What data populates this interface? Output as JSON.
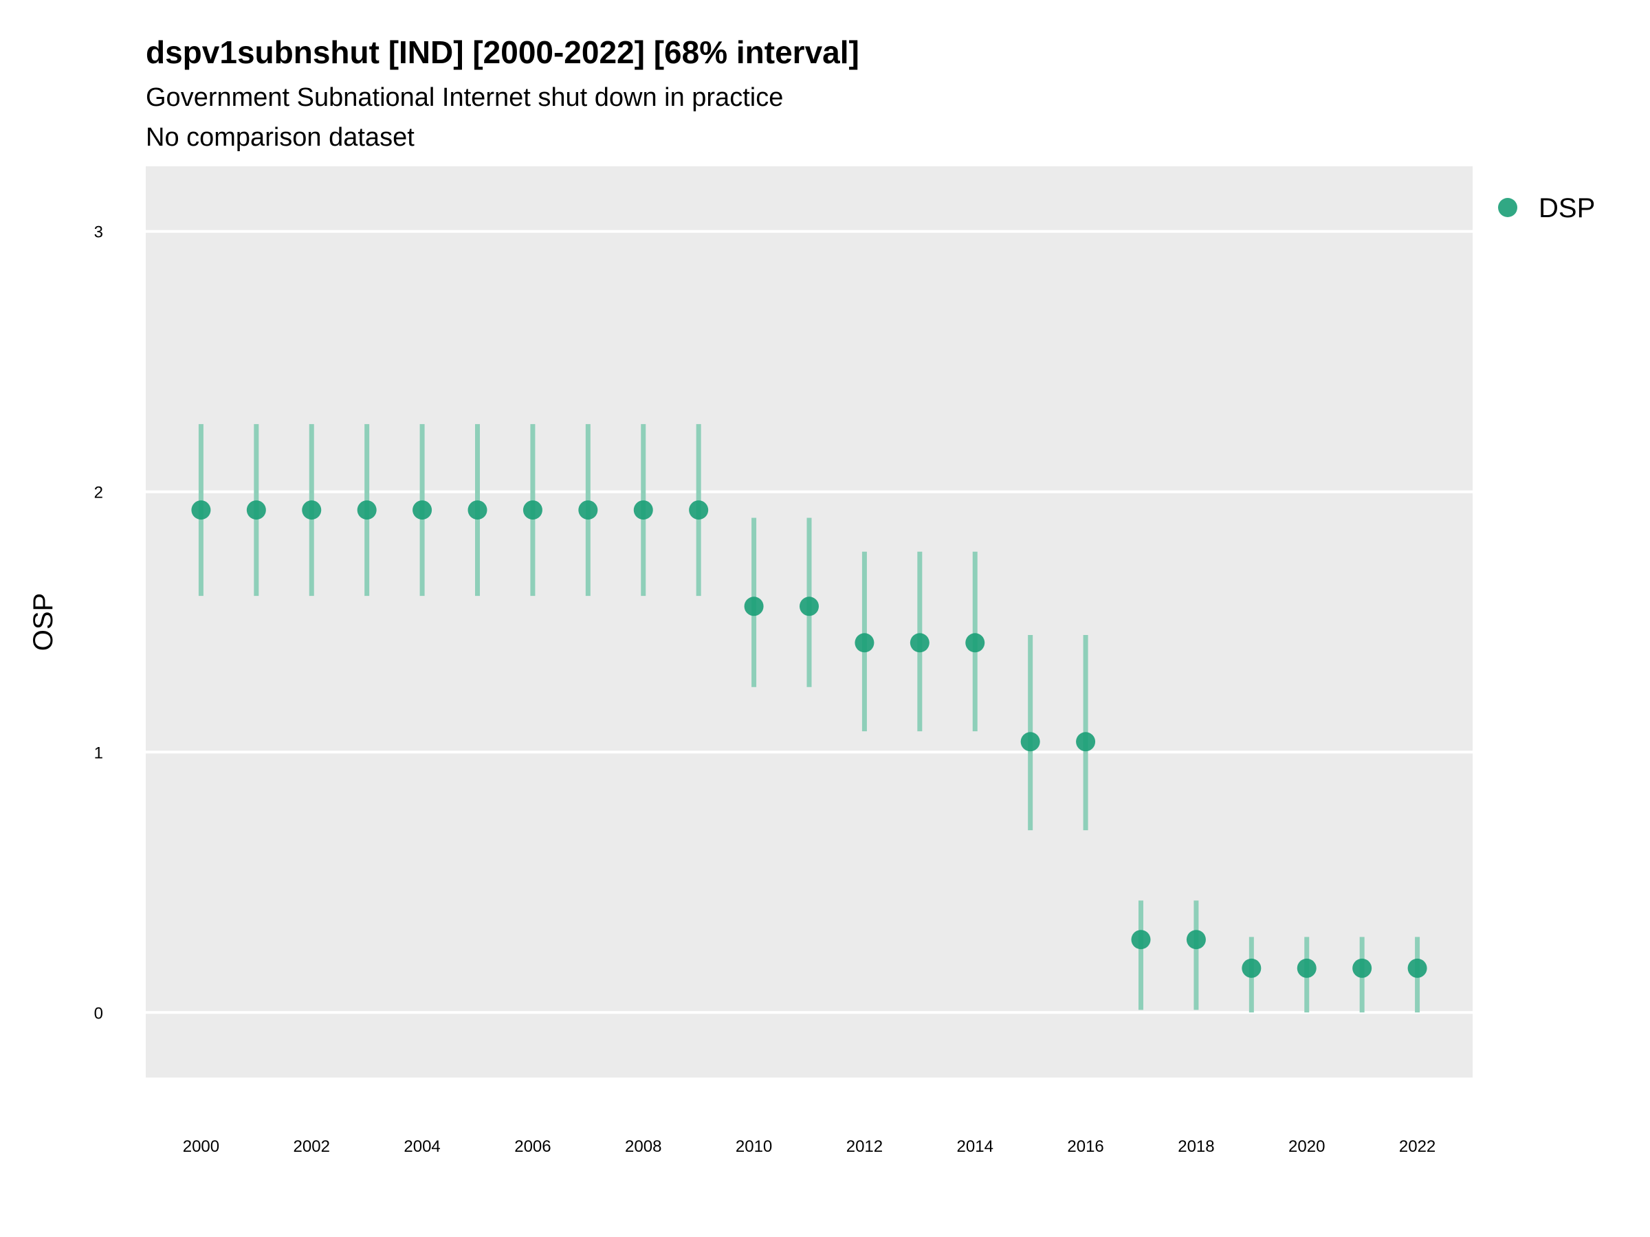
{
  "chart_data": {
    "type": "scatter",
    "title": "dspv1subnshut [IND] [2000-2022] [68% interval]",
    "subtitle": "Government Subnational Internet shut down in practice",
    "caption": "No comparison dataset",
    "xlabel": "",
    "ylabel": "OSP",
    "xlim": [
      1999,
      2023
    ],
    "ylim": [
      -0.25,
      3.25
    ],
    "x_ticks": [
      2000,
      2002,
      2004,
      2006,
      2008,
      2010,
      2012,
      2014,
      2016,
      2018,
      2020,
      2022
    ],
    "y_ticks": [
      0,
      1,
      2,
      3
    ],
    "grid": true,
    "legend_position": "top-right",
    "colors": {
      "point": "#1b9e77",
      "interval": "#8ecfb9",
      "panel": "#ebebeb",
      "grid": "#ffffff"
    },
    "series": [
      {
        "name": "DSP",
        "x": [
          2000,
          2001,
          2002,
          2003,
          2004,
          2005,
          2006,
          2007,
          2008,
          2009,
          2010,
          2011,
          2012,
          2013,
          2014,
          2015,
          2016,
          2017,
          2018,
          2019,
          2020,
          2021,
          2022
        ],
        "y": [
          1.93,
          1.93,
          1.93,
          1.93,
          1.93,
          1.93,
          1.93,
          1.93,
          1.93,
          1.93,
          1.56,
          1.56,
          1.42,
          1.42,
          1.42,
          1.04,
          1.04,
          0.28,
          0.28,
          0.17,
          0.17,
          0.17,
          0.17
        ],
        "lower": [
          1.6,
          1.6,
          1.6,
          1.6,
          1.6,
          1.6,
          1.6,
          1.6,
          1.6,
          1.6,
          1.25,
          1.25,
          1.08,
          1.08,
          1.08,
          0.7,
          0.7,
          0.01,
          0.01,
          0.0,
          0.0,
          0.0,
          0.0
        ],
        "upper": [
          2.26,
          2.26,
          2.26,
          2.26,
          2.26,
          2.26,
          2.26,
          2.26,
          2.26,
          2.26,
          1.9,
          1.9,
          1.77,
          1.77,
          1.77,
          1.45,
          1.45,
          0.43,
          0.43,
          0.29,
          0.29,
          0.29,
          0.29
        ]
      }
    ]
  }
}
